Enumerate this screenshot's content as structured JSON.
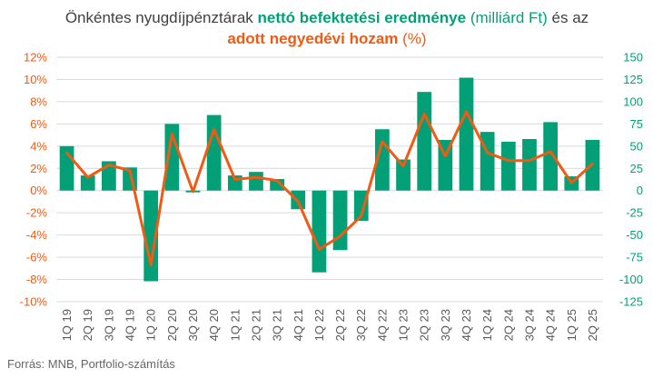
{
  "title": {
    "part1": "Önkéntes nyugdíjpénztárak ",
    "part2": "nettó befektetési eredménye",
    "part3": " (milliárd Ft)",
    "part4": " és az ",
    "part5": "adott negyedévi hozam",
    "part6": " (%)"
  },
  "source": "Forrás: MNB, Portfolio-számítás",
  "colors": {
    "bar": "#03a078",
    "line": "#f15a12",
    "left_axis": "#f15a12",
    "right_axis": "#03a078",
    "grid": "#d9d9d9"
  },
  "chart_data": {
    "type": "bar",
    "categories": [
      "1Q 19",
      "2Q 19",
      "3Q 19",
      "4Q 19",
      "1Q 20",
      "2Q 20",
      "3Q 20",
      "4Q 20",
      "1Q 21",
      "2Q 21",
      "3Q 21",
      "4Q 21",
      "1Q 22",
      "2Q 22",
      "3Q 22",
      "4Q 22",
      "1Q 23",
      "2Q 23",
      "3Q 23",
      "4Q 23",
      "1Q 24",
      "2Q 24",
      "3Q 24",
      "4Q 24",
      "1Q 25",
      "2Q 25"
    ],
    "series": [
      {
        "axis": "right",
        "type": "bar",
        "values": [
          50,
          17,
          33,
          26,
          -102,
          75,
          -2,
          85,
          17,
          21,
          13,
          -21,
          -92,
          -67,
          -34,
          69,
          35,
          111,
          57,
          127,
          66,
          55,
          58,
          77,
          16,
          57
        ]
      },
      {
        "axis": "left",
        "type": "line",
        "values": [
          3.4,
          1.2,
          2.3,
          1.8,
          -6.7,
          5.1,
          -0.1,
          5.5,
          1.0,
          1.2,
          0.9,
          -1.0,
          -5.3,
          -4.1,
          -2.3,
          4.4,
          2.2,
          6.9,
          3.1,
          7.1,
          3.4,
          2.7,
          2.7,
          3.5,
          0.7,
          2.4
        ]
      }
    ],
    "left_axis": {
      "ylim": [
        -10,
        12
      ],
      "ticks": [
        "-10%",
        "-8%",
        "-6%",
        "-4%",
        "-2%",
        "0%",
        "2%",
        "4%",
        "6%",
        "8%",
        "10%",
        "12%"
      ]
    },
    "right_axis": {
      "ylim": [
        -125,
        150
      ],
      "ticks": [
        "-125",
        "-100",
        "-75",
        "-50",
        "-25",
        "0",
        "25",
        "50",
        "75",
        "100",
        "125",
        "150"
      ]
    },
    "grid": true,
    "legend": "none"
  }
}
